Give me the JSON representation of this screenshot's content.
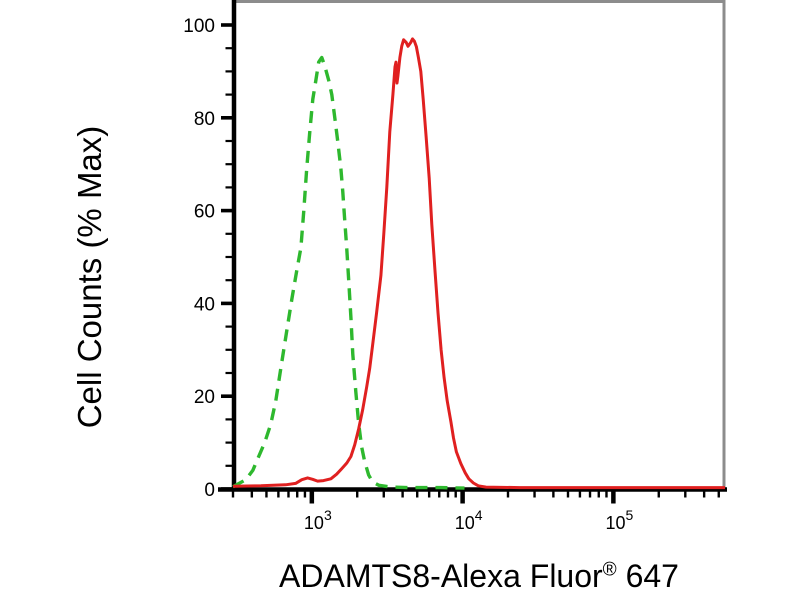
{
  "figure": {
    "background": "#ffffff",
    "ylabel": "Cell Counts (% Max)",
    "xlabel_parts": {
      "main": "ADAMTS8-Alexa Fluor",
      "registered": "®",
      "suffix": " 647"
    }
  },
  "chart_data": {
    "type": "line",
    "title": "",
    "xlabel": "ADAMTS8-Alexa Fluor® 647",
    "ylabel": "Cell Counts (% Max)",
    "x_scale": "log10",
    "x_range": [
      300,
      550000
    ],
    "ylim": [
      0,
      100
    ],
    "y_major_ticks": [
      0,
      20,
      40,
      60,
      80,
      100
    ],
    "y_minor_step": 5,
    "x_major_tick_exponents": [
      3,
      4,
      5
    ],
    "x_minor_tick_multipliers": [
      2,
      3,
      4,
      5,
      6,
      7,
      8,
      9
    ],
    "grid": false,
    "legend": "none",
    "frame_colors": {
      "axis": "#000000",
      "top": "#8c8c8c",
      "right": "#8c8c8c"
    },
    "series": [
      {
        "name": "green dashed curve",
        "style": "dashed",
        "color": "#2eb82e",
        "peak": {
          "x": 1165,
          "y": 93
        },
        "points": [
          [
            300,
            0.5
          ],
          [
            365,
            2
          ],
          [
            406,
            4
          ],
          [
            444,
            7
          ],
          [
            487,
            10
          ],
          [
            534,
            14
          ],
          [
            577,
            19
          ],
          [
            623,
            26
          ],
          [
            681,
            34
          ],
          [
            737,
            41
          ],
          [
            794,
            47
          ],
          [
            846,
            52
          ],
          [
            885,
            60
          ],
          [
            925,
            69
          ],
          [
            970,
            77
          ],
          [
            1015,
            84
          ],
          [
            1062,
            88
          ],
          [
            1110,
            92
          ],
          [
            1165,
            93
          ],
          [
            1223,
            91
          ],
          [
            1295,
            88
          ],
          [
            1357,
            85
          ],
          [
            1420,
            80
          ],
          [
            1485,
            75
          ],
          [
            1558,
            69
          ],
          [
            1604,
            64
          ],
          [
            1653,
            58
          ],
          [
            1704,
            52
          ],
          [
            1757,
            45
          ],
          [
            1815,
            37
          ],
          [
            1870,
            29
          ],
          [
            1957,
            21
          ],
          [
            2046,
            14
          ],
          [
            2140,
            9
          ],
          [
            2240,
            6
          ],
          [
            2385,
            3
          ],
          [
            2530,
            1.5
          ],
          [
            2780,
            0.8
          ],
          [
            3340,
            0.4
          ],
          [
            4540,
            0.3
          ],
          [
            7170,
            0.3
          ],
          [
            10300,
            0.2
          ]
        ]
      },
      {
        "name": "red solid curve",
        "style": "solid",
        "color": "#e02020",
        "peak": {
          "x": 4650,
          "y": 97
        },
        "points": [
          [
            300,
            0.6
          ],
          [
            460,
            0.7
          ],
          [
            670,
            0.9
          ],
          [
            780,
            1.2
          ],
          [
            858,
            2
          ],
          [
            938,
            2.4
          ],
          [
            1012,
            2.1
          ],
          [
            1092,
            1.7
          ],
          [
            1195,
            1.8
          ],
          [
            1337,
            2.2
          ],
          [
            1460,
            3.2
          ],
          [
            1580,
            4.4
          ],
          [
            1705,
            5.6
          ],
          [
            1815,
            7
          ],
          [
            1925,
            9.5
          ],
          [
            2046,
            13
          ],
          [
            2172,
            17
          ],
          [
            2310,
            22
          ],
          [
            2420,
            26
          ],
          [
            2530,
            31
          ],
          [
            2690,
            38
          ],
          [
            2870,
            46
          ],
          [
            3000,
            55
          ],
          [
            3140,
            65
          ],
          [
            3290,
            77
          ],
          [
            3450,
            85
          ],
          [
            3560,
            91
          ],
          [
            3615,
            92
          ],
          [
            3670,
            87.5
          ],
          [
            3725,
            89
          ],
          [
            3840,
            93
          ],
          [
            3950,
            95.5
          ],
          [
            4060,
            96.8
          ],
          [
            4230,
            96.2
          ],
          [
            4345,
            95.4
          ],
          [
            4540,
            96.3
          ],
          [
            4650,
            97
          ],
          [
            4790,
            96.5
          ],
          [
            4940,
            95.3
          ],
          [
            5090,
            93
          ],
          [
            5285,
            90
          ],
          [
            5480,
            84
          ],
          [
            5730,
            76
          ],
          [
            6000,
            67
          ],
          [
            6250,
            57
          ],
          [
            6560,
            47
          ],
          [
            6870,
            38
          ],
          [
            7200,
            30
          ],
          [
            7540,
            24
          ],
          [
            7900,
            19
          ],
          [
            8360,
            14.5
          ],
          [
            8700,
            11
          ],
          [
            9100,
            8
          ],
          [
            9730,
            5.5
          ],
          [
            10400,
            3.5
          ],
          [
            11000,
            2.2
          ],
          [
            11800,
            1.3
          ],
          [
            12700,
            0.7
          ],
          [
            14300,
            0.4
          ],
          [
            24000,
            0.3
          ],
          [
            45000,
            0.3
          ],
          [
            100000,
            0.3
          ],
          [
            280000,
            0.3
          ],
          [
            550000,
            0.3
          ]
        ]
      }
    ]
  }
}
